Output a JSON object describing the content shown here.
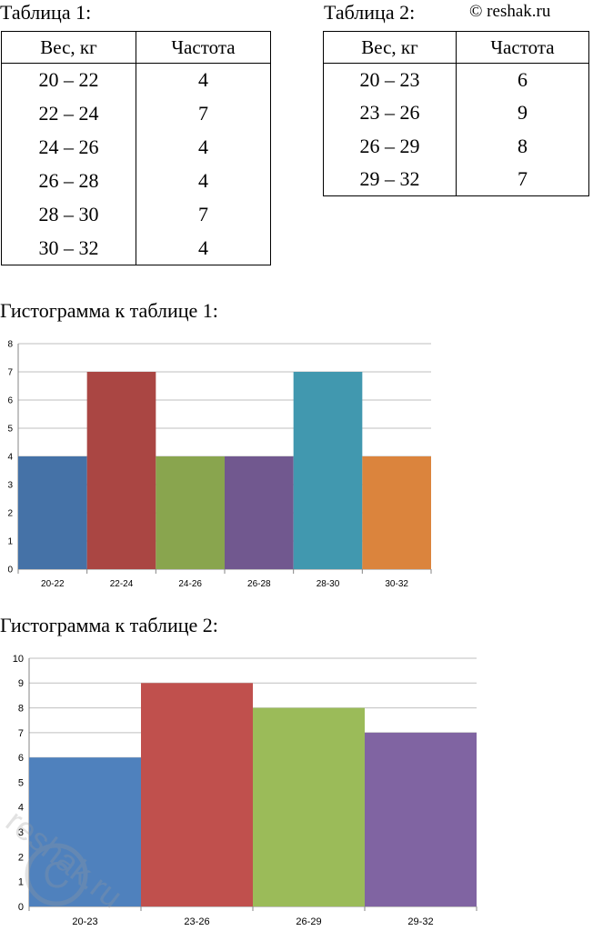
{
  "watermark": "© reshak.ru",
  "watermark_logo": "reshak.ru",
  "table1": {
    "caption": "Таблица 1:",
    "headers": [
      "Вес, кг",
      "Частота"
    ],
    "rows": [
      [
        "20 – 22",
        "4"
      ],
      [
        "22 – 24",
        "7"
      ],
      [
        "24 – 26",
        "4"
      ],
      [
        "26 – 28",
        "4"
      ],
      [
        "28 – 30",
        "7"
      ],
      [
        "30 – 32",
        "4"
      ]
    ]
  },
  "table2": {
    "caption": "Таблица 2:",
    "headers": [
      "Вес, кг",
      "Частота"
    ],
    "rows": [
      [
        "20 – 23",
        "6"
      ],
      [
        "23 – 26",
        "9"
      ],
      [
        "26 – 29",
        "8"
      ],
      [
        "29 – 32",
        "7"
      ]
    ]
  },
  "chart1_caption": "Гистограмма к таблице 1:",
  "chart2_caption": "Гистограмма к таблице 2:",
  "chart_data": [
    {
      "type": "bar",
      "categories": [
        "20-22",
        "22-24",
        "24-26",
        "26-28",
        "28-30",
        "30-32"
      ],
      "values": [
        4,
        7,
        4,
        4,
        7,
        4
      ],
      "colors": [
        "#4572a7",
        "#aa4643",
        "#89a54e",
        "#71588f",
        "#4198af",
        "#db843d"
      ],
      "ylim": [
        0,
        8
      ],
      "yticks": [
        0,
        1,
        2,
        3,
        4,
        5,
        6,
        7,
        8
      ],
      "grid": true,
      "legend": "none",
      "title": "",
      "xlabel": "",
      "ylabel": ""
    },
    {
      "type": "bar",
      "categories": [
        "20-23",
        "23-26",
        "26-29",
        "29-32"
      ],
      "values": [
        6,
        9,
        8,
        7
      ],
      "colors": [
        "#4f81bd",
        "#c0504d",
        "#9bbb59",
        "#8064a2"
      ],
      "ylim": [
        0,
        10
      ],
      "yticks": [
        0,
        1,
        2,
        3,
        4,
        5,
        6,
        7,
        8,
        9,
        10
      ],
      "grid": true,
      "legend": "none",
      "title": "",
      "xlabel": "",
      "ylabel": ""
    }
  ]
}
